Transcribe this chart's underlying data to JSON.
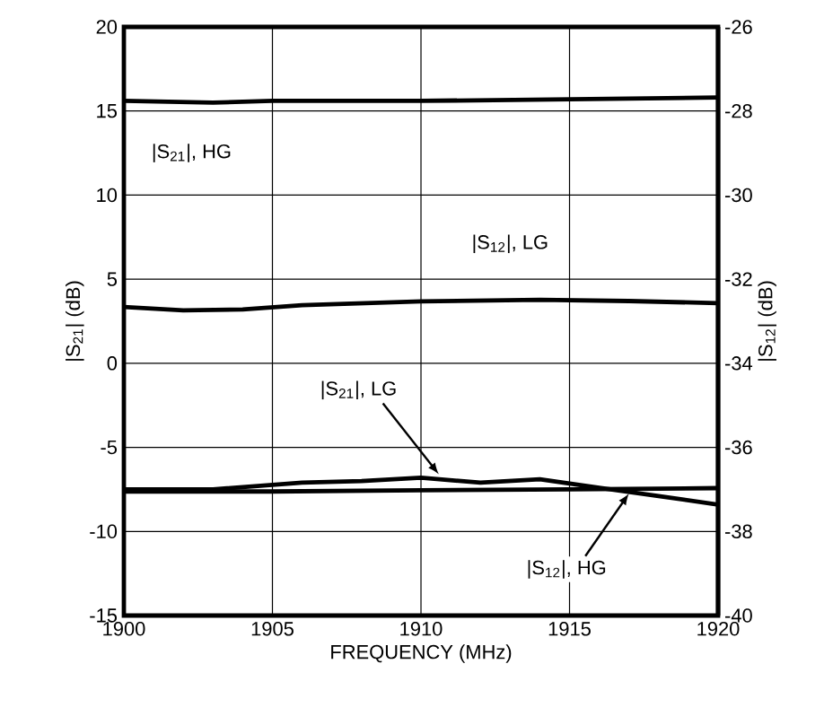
{
  "chart_data": {
    "type": "line",
    "xlabel": "FREQUENCY (MHz)",
    "ylabel": "|S$_{21}$| (dB)",
    "y2label": "|S$_{12}$| (dB)",
    "xlim": [
      1900,
      1920
    ],
    "xticks": [
      1900,
      1905,
      1910,
      1915,
      1920
    ],
    "ylim": [
      -15,
      20
    ],
    "yticks": [
      -15,
      -10,
      -5,
      0,
      5,
      10,
      15,
      20
    ],
    "y2lim": [
      -40,
      -26
    ],
    "y2ticks": [
      -40,
      -38,
      -36,
      -34,
      -32,
      -30,
      -28,
      -26
    ],
    "grid": true,
    "series": [
      {
        "name": "|S$_{21}$|, HG",
        "color": "#000000",
        "x": [
          1900,
          1903,
          1905,
          1910,
          1915,
          1920
        ],
        "values": [
          15.6,
          15.5,
          15.6,
          15.6,
          15.7,
          15.8
        ]
      },
      {
        "name": "|S$_{12}$|, LG",
        "color": "#000000",
        "axis": "y2",
        "x": [
          1900,
          1902,
          1904,
          1906,
          1910,
          1914,
          1917,
          1920
        ],
        "values": [
          -32.66,
          -32.74,
          -32.72,
          -32.62,
          -32.53,
          -32.49,
          -32.52,
          -32.57
        ]
      },
      {
        "name": "|S$_{21}$|, LG",
        "color": "#000000",
        "x": [
          1900,
          1903,
          1906,
          1908,
          1910,
          1912,
          1914,
          1916,
          1918,
          1920
        ],
        "values": [
          -7.5,
          -7.5,
          -7.1,
          -7.0,
          -6.8,
          -7.1,
          -6.9,
          -7.4,
          -7.9,
          -8.4
        ]
      },
      {
        "name": "|S$_{12}$|, HG",
        "color": "#000000",
        "axis": "y2",
        "x": [
          1900,
          1905,
          1910,
          1915,
          1920
        ],
        "values": [
          -37.05,
          -37.05,
          -37.02,
          -37.0,
          -36.97
        ]
      }
    ]
  }
}
